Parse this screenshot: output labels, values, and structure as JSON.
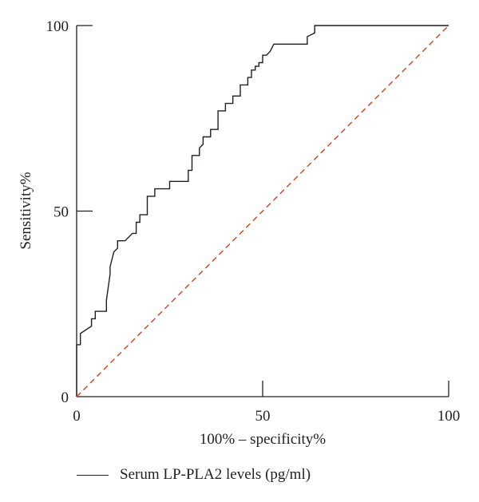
{
  "chart_data": {
    "type": "line",
    "title": "",
    "xlabel": "100% – specificity%",
    "ylabel": "Sensitivity%",
    "xlim": [
      0,
      100
    ],
    "ylim": [
      0,
      100
    ],
    "x_ticks": [
      "0",
      "50",
      "100"
    ],
    "y_ticks": [
      "0",
      "50",
      "100"
    ],
    "grid": false,
    "legend_position": "bottom-left",
    "series": [
      {
        "name": "Serum LP-PLA2 levels (pg/ml)",
        "color": "#231f20",
        "style": "step",
        "x": [
          0,
          0,
          1,
          1,
          4,
          4,
          5,
          5,
          8,
          8,
          9,
          9,
          10,
          11,
          11,
          13,
          15,
          16,
          16,
          17,
          17,
          19,
          19,
          21,
          21,
          25,
          25,
          30,
          30,
          31,
          31,
          33,
          33,
          34,
          34,
          36,
          36,
          38,
          38,
          40,
          40,
          42,
          42,
          44,
          44,
          46,
          46,
          47,
          47,
          48,
          48,
          49,
          49,
          50,
          50,
          51,
          52,
          53,
          55,
          56,
          56,
          62,
          62,
          64,
          64,
          100
        ],
        "y": [
          0,
          14,
          14,
          17,
          19,
          21,
          21,
          23,
          23,
          26,
          33,
          35,
          39,
          40,
          42,
          42,
          44,
          44,
          47,
          47,
          49,
          49,
          54,
          54,
          56,
          56,
          58,
          58,
          61,
          61,
          65,
          65,
          67,
          68,
          70,
          70,
          72,
          72,
          77,
          77,
          79,
          79,
          81,
          81,
          84,
          84,
          86,
          86,
          88,
          88,
          89,
          89,
          90,
          90,
          92,
          92,
          93,
          95,
          95,
          95,
          95,
          95,
          97,
          98,
          100,
          100
        ]
      },
      {
        "name": "",
        "color": "#d0411c",
        "style": "dashed",
        "x": [
          0,
          100
        ],
        "y": [
          0,
          100
        ]
      }
    ]
  }
}
